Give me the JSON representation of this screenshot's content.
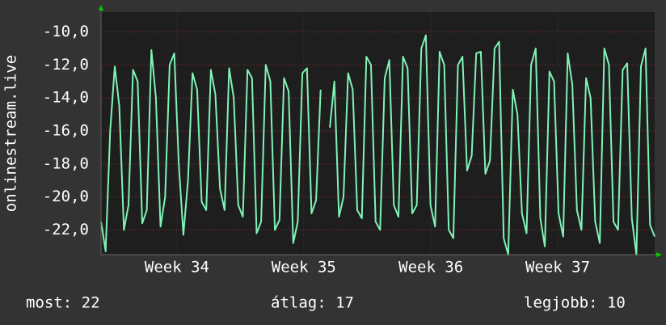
{
  "chart_data": {
    "type": "line",
    "y_label": "onlinestream.live",
    "series": [
      {
        "name": "onlinestream.live",
        "color": "#80f2b6",
        "values": [
          -21.5,
          -23.3,
          -16,
          -12.1,
          -14.5,
          -22,
          -20.5,
          -12.3,
          -13,
          -21.6,
          -20.8,
          -11.1,
          -14,
          -21.8,
          -20,
          -12,
          -11.3,
          -18,
          -22.3,
          -19,
          -12.5,
          -13.5,
          -20.3,
          -20.8,
          -12.3,
          -13.8,
          -19.5,
          -20.8,
          -12.2,
          -14,
          -20.5,
          -21.2,
          -12.3,
          -12.8,
          -22.2,
          -21.5,
          -12,
          -13,
          -22,
          -21.4,
          -12.8,
          -13.6,
          -22.8,
          -21.5,
          -12.5,
          -12.2,
          -21,
          -20.2,
          -13.5,
          null,
          -15.8,
          -13,
          -21.2,
          -20,
          -12.5,
          -13.5,
          -20.8,
          -21.3,
          -11.5,
          -12,
          -21.5,
          -22,
          -12.8,
          -11.7,
          -20.5,
          -21.2,
          -11.5,
          -12.2,
          -21,
          -20.5,
          -11,
          -10.2,
          -20.5,
          -21.8,
          -11.2,
          -12,
          -22,
          -22.5,
          -12,
          -11.5,
          -18.4,
          -17.5,
          -11.3,
          -11.2,
          -18.6,
          -17.8,
          -11,
          -10.6,
          -22.5,
          -23.5,
          -13.5,
          -15,
          -21,
          -22.2,
          -12,
          -11,
          -21.3,
          -23,
          -12.4,
          -13,
          -21,
          -22.4,
          -11.3,
          -13.2,
          -20.8,
          -22,
          -12.8,
          -14,
          -21.5,
          -22.8,
          -11,
          -12,
          -21.5,
          -22,
          -12.3,
          -11.9,
          -21.3,
          -23.5,
          -12.1,
          -11,
          -21.7,
          -22.4
        ]
      }
    ],
    "xlim": [
      0,
      121
    ],
    "xticks": [
      {
        "value": 16.6,
        "label": "Week 34"
      },
      {
        "value": 44.3,
        "label": "Week 35"
      },
      {
        "value": 72.1,
        "label": "Week 36"
      },
      {
        "value": 99.8,
        "label": "Week 37"
      }
    ],
    "ylim": [
      -23.5,
      -8.8
    ],
    "yticks": [
      {
        "value": -10,
        "label": "-10,0"
      },
      {
        "value": -12,
        "label": "-12,0"
      },
      {
        "value": -14,
        "label": "-14,0"
      },
      {
        "value": -16,
        "label": "-16,0"
      },
      {
        "value": -18,
        "label": "-18,0"
      },
      {
        "value": -20,
        "label": "-20,0"
      },
      {
        "value": -22,
        "label": "-22,0"
      }
    ],
    "grid": true,
    "footer": {
      "current": "most: 22",
      "average": "átlag: 17",
      "best": "legjobb: 10"
    }
  }
}
